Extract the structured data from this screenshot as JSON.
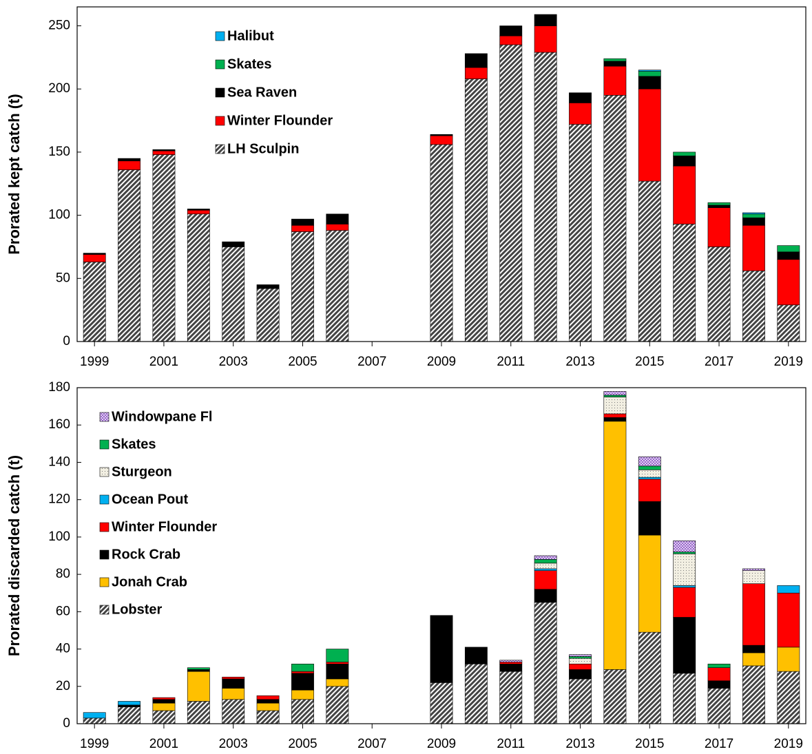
{
  "chart_data": [
    {
      "type": "bar",
      "stacked": true,
      "ylabel": "Prorated kept catch  (t)",
      "x": [
        1999,
        2000,
        2001,
        2002,
        2003,
        2004,
        2005,
        2006,
        2007,
        2008,
        2009,
        2010,
        2011,
        2012,
        2013,
        2014,
        2015,
        2016,
        2017,
        2018,
        2019
      ],
      "xlim": [
        1998.5,
        2019.5
      ],
      "xticks": [
        1999,
        2001,
        2003,
        2005,
        2007,
        2009,
        2011,
        2013,
        2015,
        2017,
        2019
      ],
      "ylim": [
        0,
        265
      ],
      "yticks": [
        0,
        50,
        100,
        150,
        200,
        250
      ],
      "legend": "upper-left",
      "series": [
        {
          "name": "LH Sculpin",
          "color": "#444444",
          "pattern": "hatch",
          "values": [
            63,
            136,
            148,
            101,
            75,
            42,
            87,
            88,
            null,
            null,
            156,
            208,
            235,
            229,
            172,
            195,
            127,
            93,
            75,
            56,
            29
          ]
        },
        {
          "name": "Winter Flounder",
          "color": "#ff0000",
          "values": [
            6,
            7,
            3,
            3,
            0,
            0,
            5,
            5,
            null,
            null,
            7,
            9,
            7,
            21,
            17,
            23,
            73,
            46,
            31,
            36,
            36
          ]
        },
        {
          "name": "Sea Raven",
          "color": "#000000",
          "values": [
            1,
            2,
            1,
            1,
            4,
            3,
            5,
            8,
            null,
            null,
            1,
            11,
            8,
            9,
            8,
            4,
            10,
            8,
            2,
            6,
            6
          ]
        },
        {
          "name": "Skates",
          "color": "#00b050",
          "values": [
            0,
            0,
            0,
            0,
            0,
            0,
            0,
            0,
            null,
            null,
            0,
            0,
            0,
            0,
            0,
            2,
            4,
            3,
            2,
            3,
            5
          ]
        },
        {
          "name": "Halibut",
          "color": "#00b0f0",
          "values": [
            0,
            0,
            0,
            0,
            0,
            0,
            0,
            0,
            null,
            null,
            0,
            0,
            0,
            0,
            0,
            0,
            1,
            0,
            0,
            1,
            0
          ]
        }
      ]
    },
    {
      "type": "bar",
      "stacked": true,
      "ylabel": "Prorated discarded catch (t)",
      "x": [
        1999,
        2000,
        2001,
        2002,
        2003,
        2004,
        2005,
        2006,
        2007,
        2008,
        2009,
        2010,
        2011,
        2012,
        2013,
        2014,
        2015,
        2016,
        2017,
        2018,
        2019
      ],
      "xlim": [
        1998.5,
        2019.5
      ],
      "xticks": [
        1999,
        2001,
        2003,
        2005,
        2007,
        2009,
        2011,
        2013,
        2015,
        2017,
        2019
      ],
      "ylim": [
        0,
        180
      ],
      "yticks": [
        0,
        20,
        40,
        60,
        80,
        100,
        120,
        140,
        160,
        180
      ],
      "legend": "upper-left",
      "series": [
        {
          "name": "Lobster",
          "color": "#444444",
          "pattern": "hatch",
          "values": [
            3,
            9,
            7,
            12,
            13,
            7,
            13,
            20,
            null,
            null,
            22,
            32,
            28,
            65,
            24,
            29,
            49,
            27,
            19,
            31,
            28
          ]
        },
        {
          "name": "Jonah Crab",
          "color": "#ffc000",
          "values": [
            0,
            0,
            4,
            16,
            6,
            4,
            5,
            4,
            null,
            null,
            0,
            0,
            0,
            0,
            0,
            133,
            52,
            0,
            0,
            7,
            13
          ]
        },
        {
          "name": "Rock Crab",
          "color": "#000000",
          "values": [
            0,
            1,
            2,
            1,
            5,
            2,
            9,
            8,
            null,
            null,
            36,
            9,
            4,
            7,
            5,
            2,
            18,
            30,
            4,
            4,
            0
          ]
        },
        {
          "name": "Winter Flounder",
          "color": "#ff0000",
          "values": [
            0,
            0,
            1,
            0,
            1,
            2,
            1,
            1,
            null,
            null,
            0,
            0,
            1,
            10,
            3,
            2,
            12,
            16,
            7,
            33,
            29
          ]
        },
        {
          "name": "Ocean Pout",
          "color": "#00b0f0",
          "values": [
            3,
            2,
            0,
            0,
            0,
            0,
            0,
            0,
            null,
            null,
            0,
            0,
            0,
            1,
            0,
            0,
            1,
            1,
            0,
            0,
            4
          ]
        },
        {
          "name": "Sturgeon",
          "color": "#f2efe2",
          "pattern": "dots",
          "values": [
            0,
            0,
            0,
            0,
            0,
            0,
            0,
            0,
            null,
            null,
            0,
            0,
            0,
            3,
            3,
            9,
            4,
            17,
            0,
            7,
            0
          ]
        },
        {
          "name": "Skates",
          "color": "#00b050",
          "values": [
            0,
            0,
            0,
            1,
            0,
            0,
            4,
            7,
            null,
            null,
            0,
            0,
            0,
            2,
            1,
            1,
            2,
            1,
            2,
            0,
            0
          ]
        },
        {
          "name": "Windowpane Fl",
          "color": "#9966cc",
          "pattern": "dots",
          "values": [
            0,
            0,
            0,
            0,
            0,
            0,
            0,
            0,
            null,
            null,
            0,
            0,
            1,
            2,
            1,
            2,
            5,
            6,
            0,
            1,
            0
          ]
        }
      ]
    }
  ]
}
